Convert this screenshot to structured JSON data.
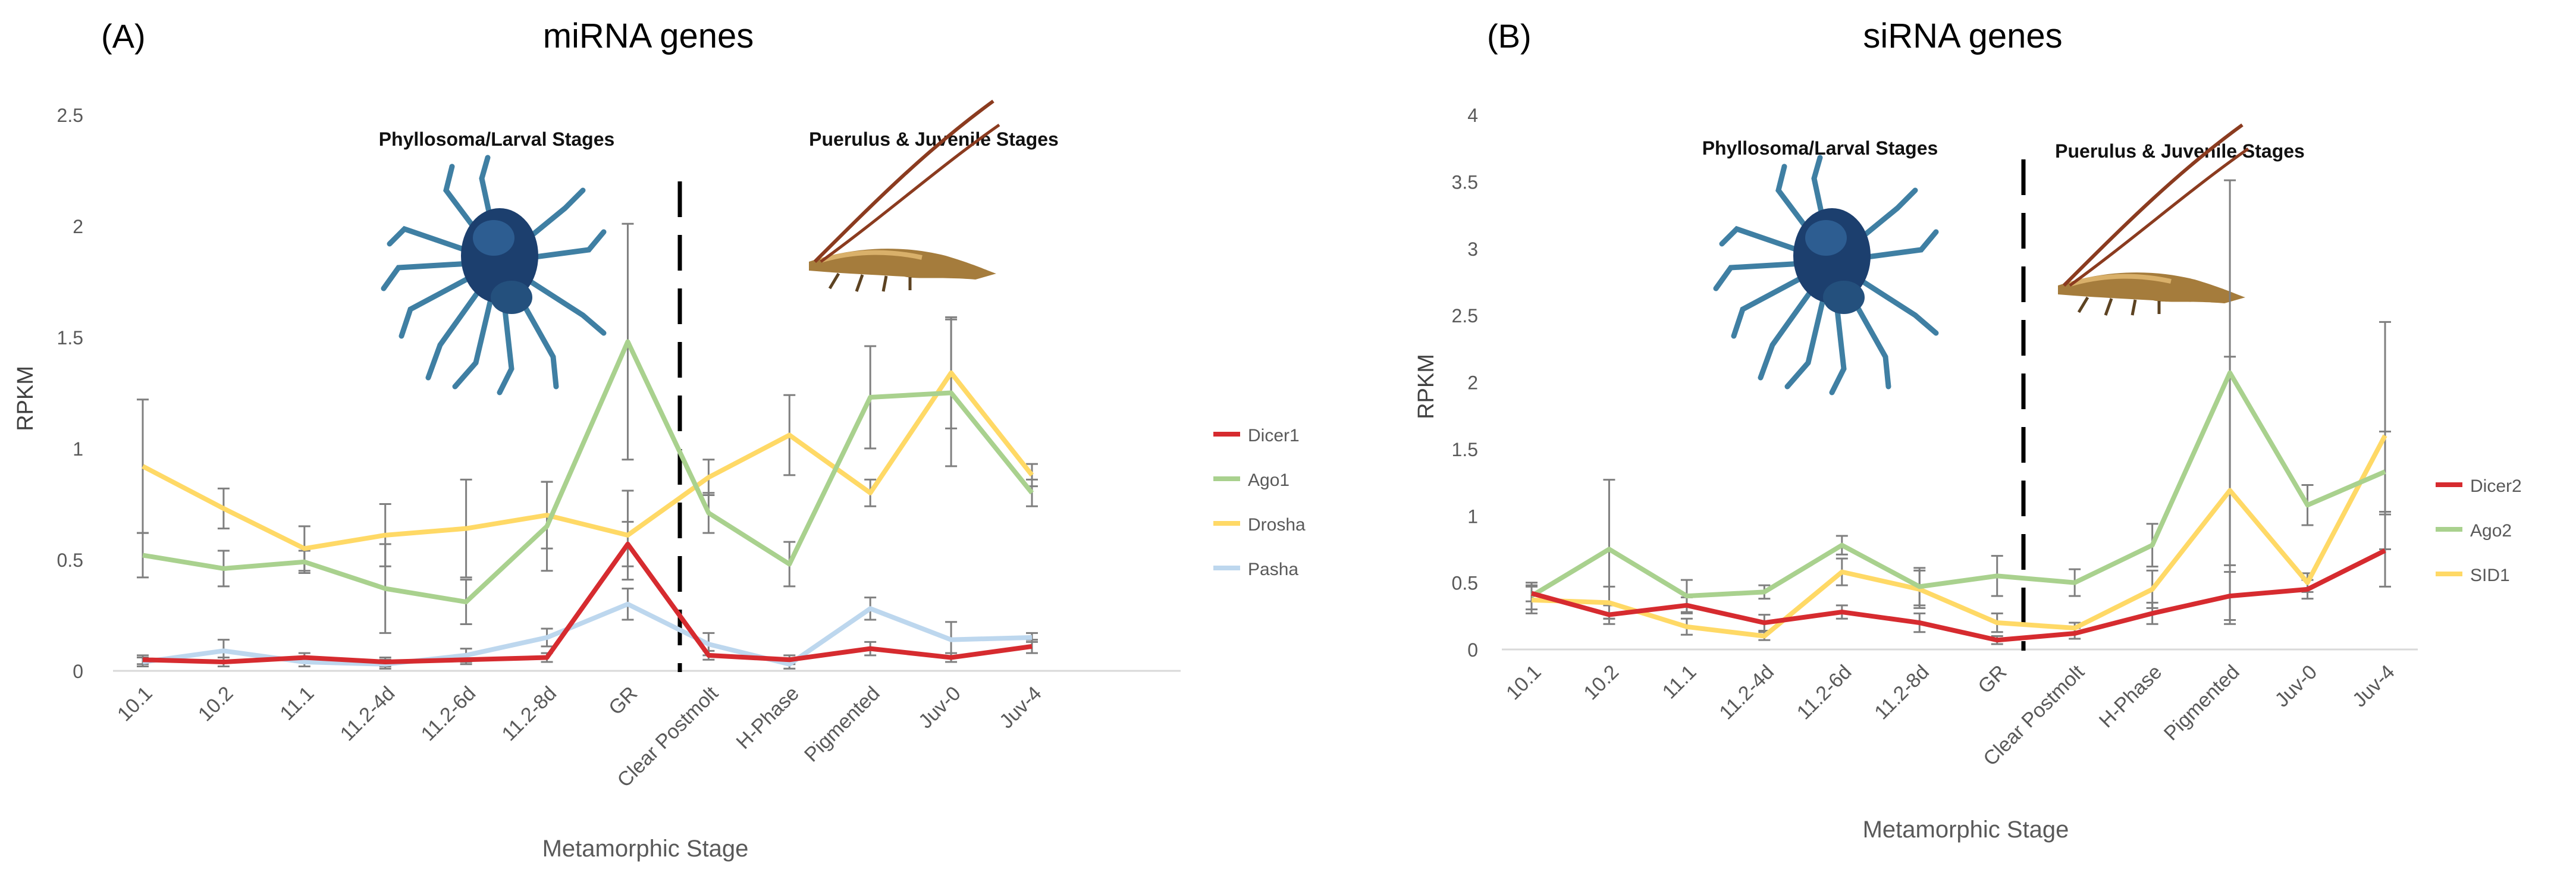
{
  "colors": {
    "Dicer1": "#d62b2f",
    "Ago1": "#a9d18e",
    "Drosha": "#ffd966",
    "Pasha": "#bdd7ee",
    "Dicer2": "#d62b2f",
    "Ago2": "#a9d18e",
    "SID1": "#ffd966",
    "axis": "#d9d9d9",
    "tick": "#595959",
    "errorbar": "#7f7f7f",
    "divider": "#000000"
  },
  "chart_data": [
    {
      "type": "line",
      "panel_label": "(A)",
      "title": "miRNA genes",
      "xlabel": "Metamorphic Stage",
      "ylabel": "RPKM",
      "ylim": [
        0,
        2.5
      ],
      "yticks": [
        "0",
        "0.5",
        "1",
        "1.5",
        "2",
        "2.5"
      ],
      "grid": false,
      "legend": "right",
      "categories": [
        "10.1",
        "10.2",
        "11.1",
        "11.2-4d",
        "11.2-6d",
        "11.2-8d",
        "GR",
        "Clear Postmolt",
        "H-Phase",
        "Pigmented",
        "Juv-0",
        "Juv-4"
      ],
      "series": [
        {
          "name": "Dicer1",
          "values": [
            0.05,
            0.04,
            0.06,
            0.04,
            0.05,
            0.06,
            0.57,
            0.07,
            0.05,
            0.1,
            0.06,
            0.11
          ],
          "errors": [
            0.02,
            0.02,
            0.02,
            0.02,
            0.02,
            0.02,
            0.1,
            0.02,
            0.02,
            0.03,
            0.02,
            0.03
          ]
        },
        {
          "name": "Ago1",
          "values": [
            0.52,
            0.46,
            0.49,
            0.37,
            0.31,
            0.65,
            1.48,
            0.71,
            0.48,
            1.23,
            1.25,
            0.8
          ],
          "errors": [
            0.1,
            0.08,
            0.05,
            0.2,
            0.1,
            0.2,
            0.53,
            0.09,
            0.1,
            0.23,
            0.33,
            0.06
          ]
        },
        {
          "name": "Drosha",
          "values": [
            0.92,
            0.73,
            0.55,
            0.61,
            0.64,
            0.7,
            0.61,
            0.87,
            1.06,
            0.8,
            1.34,
            0.88
          ],
          "errors": [
            0.3,
            0.09,
            0.1,
            0.14,
            0.22,
            0.15,
            0.2,
            0.08,
            0.18,
            0.06,
            0.25,
            0.05
          ]
        },
        {
          "name": "Pasha",
          "values": [
            0.04,
            0.09,
            0.04,
            0.03,
            0.07,
            0.15,
            0.3,
            0.12,
            0.03,
            0.28,
            0.14,
            0.15
          ],
          "errors": [
            0.02,
            0.05,
            0.02,
            0.02,
            0.03,
            0.04,
            0.07,
            0.05,
            0.02,
            0.05,
            0.08,
            0.02
          ]
        }
      ],
      "annotations": {
        "larval": "Phyllosoma/Larval Stages",
        "juvenile": "Puerulus & Juvenile Stages"
      },
      "divider_after": "GR"
    },
    {
      "type": "line",
      "panel_label": "(B)",
      "title": "siRNA genes",
      "xlabel": "Metamorphic Stage",
      "ylabel": "RPKM",
      "ylim": [
        0,
        4
      ],
      "yticks": [
        "0",
        "0.5",
        "1",
        "1.5",
        "2",
        "2.5",
        "3",
        "3.5",
        "4"
      ],
      "grid": false,
      "legend": "right",
      "categories": [
        "10.1",
        "10.2",
        "11.1",
        "11.2-4d",
        "11.2-6d",
        "11.2-8d",
        "GR",
        "Clear Postmolt",
        "H-Phase",
        "Pigmented",
        "Juv-0",
        "Juv-4"
      ],
      "series": [
        {
          "name": "Dicer2",
          "values": [
            0.42,
            0.26,
            0.33,
            0.2,
            0.28,
            0.2,
            0.07,
            0.12,
            0.27,
            0.4,
            0.45,
            0.74
          ],
          "errors": [
            0.06,
            0.07,
            0.06,
            0.06,
            0.05,
            0.07,
            0.03,
            0.04,
            0.08,
            0.18,
            0.07,
            0.27
          ]
        },
        {
          "name": "Ago2",
          "values": [
            0.4,
            0.75,
            0.4,
            0.43,
            0.78,
            0.47,
            0.55,
            0.5,
            0.78,
            2.07,
            1.08,
            1.33
          ],
          "errors": [
            0.1,
            0.52,
            0.12,
            0.05,
            0.07,
            0.14,
            0.15,
            0.1,
            0.16,
            1.44,
            0.15,
            0.3
          ]
        },
        {
          "name": "SID1",
          "values": [
            0.37,
            0.35,
            0.17,
            0.1,
            0.58,
            0.45,
            0.2,
            0.16,
            0.45,
            1.19,
            0.5,
            1.6
          ],
          "errors": [
            0.1,
            0.12,
            0.06,
            0.03,
            0.1,
            0.14,
            0.07,
            0.04,
            0.14,
            1.0,
            0.07,
            0.85
          ]
        }
      ],
      "annotations": {
        "larval": "Phyllosoma/Larval Stages",
        "juvenile": "Puerulus & Juvenile Stages"
      },
      "divider_after": "GR"
    }
  ]
}
